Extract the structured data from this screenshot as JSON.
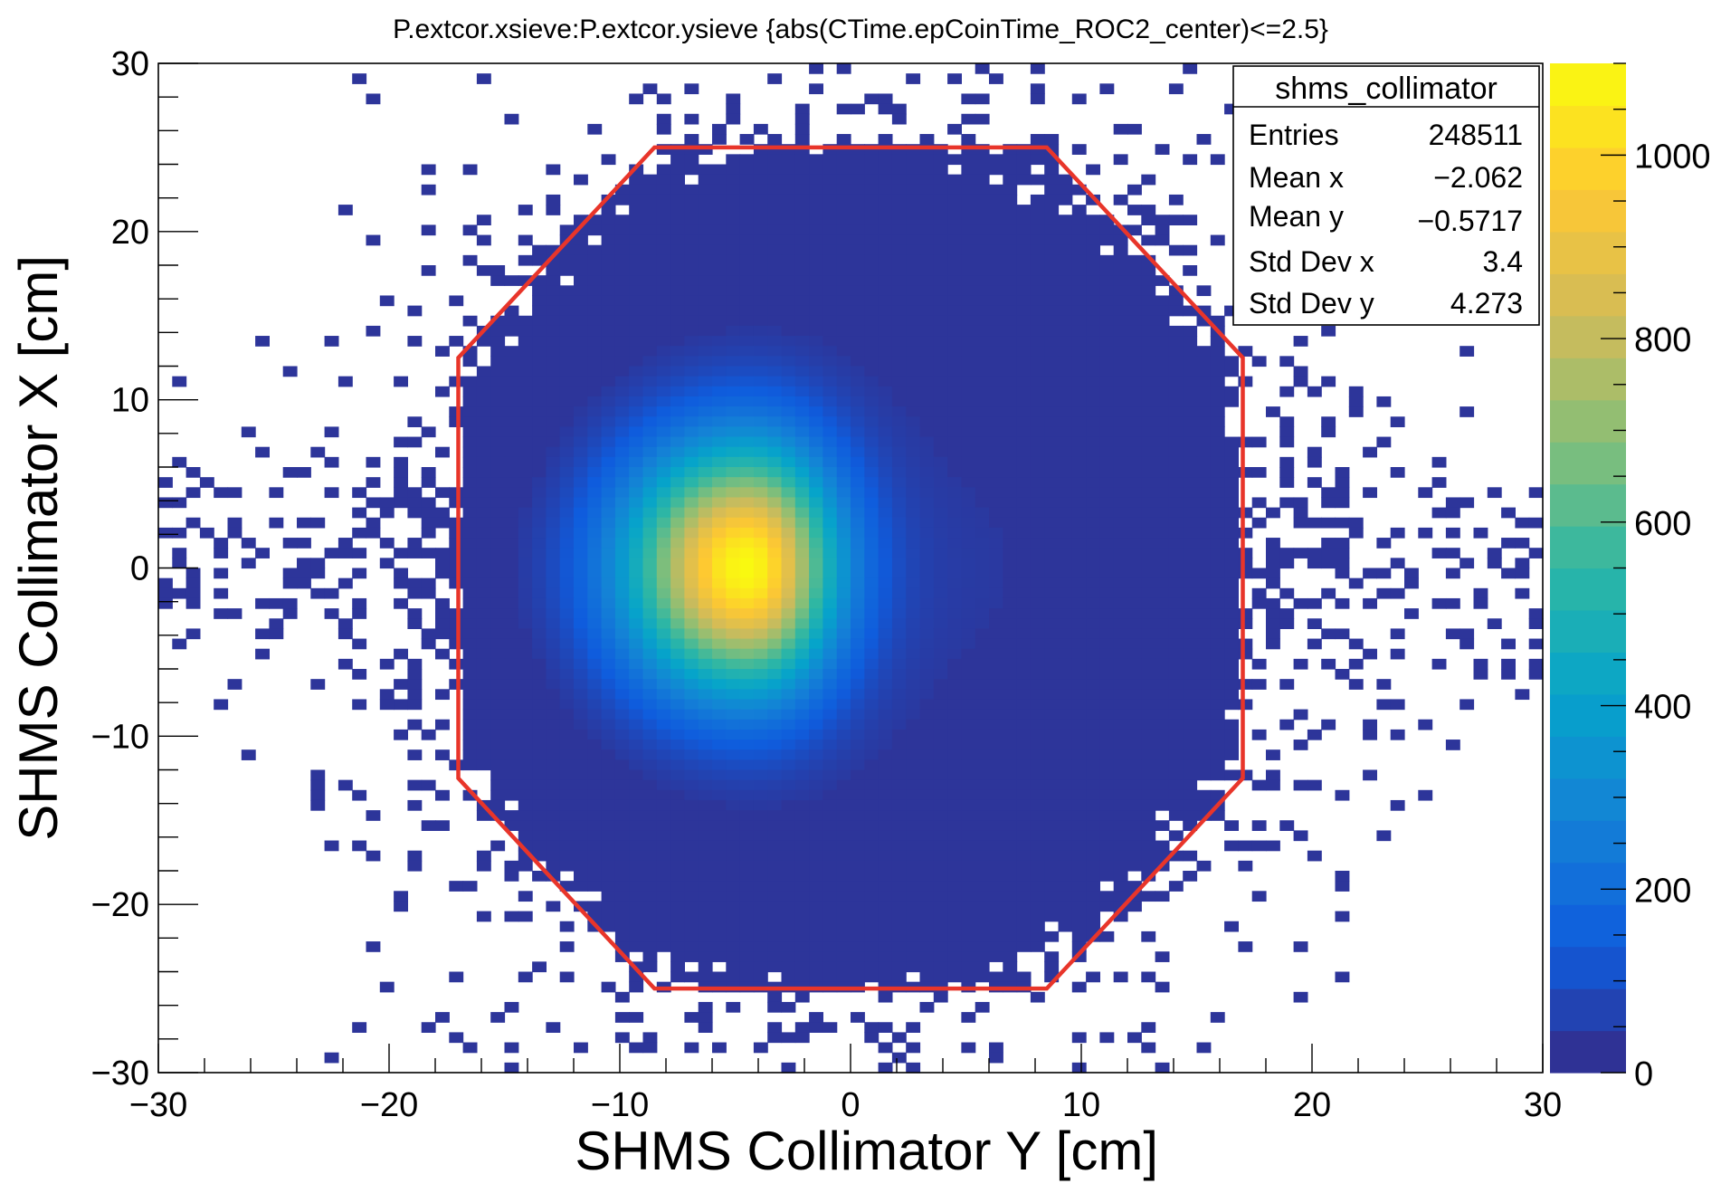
{
  "chart_data": {
    "type": "heatmap",
    "title": "P.extcor.xsieve:P.extcor.ysieve {abs(CTime.epCoinTime_ROC2_center)<=2.5}",
    "xlabel": "SHMS Collimator Y [cm]",
    "ylabel": "SHMS Collimator X [cm]",
    "xlim": [
      -30,
      30
    ],
    "ylim": [
      -30,
      30
    ],
    "x_ticks": [
      "−30",
      "−20",
      "−10",
      "0",
      "10",
      "20",
      "30"
    ],
    "y_ticks": [
      "30",
      "20",
      "10",
      "0",
      "−10",
      "−20",
      "−30"
    ],
    "x_tick_values": [
      -30,
      -20,
      -10,
      0,
      10,
      20,
      30
    ],
    "y_tick_values": [
      30,
      20,
      10,
      0,
      -10,
      -20,
      -30
    ],
    "colorbar": {
      "range": [
        0,
        1100
      ],
      "tick_labels": [
        "1000",
        "800",
        "600",
        "400",
        "200",
        "0"
      ],
      "tick_values": [
        1000,
        800,
        600,
        400,
        200,
        0
      ],
      "palette": [
        "#352a87",
        "#0f5cdd",
        "#1481d6",
        "#06a4ca",
        "#2eb7a4",
        "#87bf77",
        "#d1bb59",
        "#fec832",
        "#f9fb0e"
      ]
    },
    "hot_spot": {
      "center_y_cm": -4.5,
      "center_x_cm": 0.0,
      "peak": 1050
    },
    "collimator_outline": {
      "color": "#e8352a",
      "vertices": [
        [
          -8.5,
          25
        ],
        [
          8.5,
          25
        ],
        [
          17,
          12.5
        ],
        [
          17,
          -12.5
        ],
        [
          8.5,
          -25
        ],
        [
          -8.5,
          -25
        ],
        [
          -17,
          -12.5
        ],
        [
          -17,
          12.5
        ]
      ]
    },
    "stats_box": {
      "name": "shms_collimator",
      "rows": [
        {
          "label": "Entries",
          "value": "248511"
        },
        {
          "label": "Mean x",
          "value": "−2.062"
        },
        {
          "label": "Mean y",
          "value": "−0.5717"
        },
        {
          "label": "Std Dev x",
          "value": "3.4"
        },
        {
          "label": "Std Dev y",
          "value": "4.273"
        }
      ]
    }
  }
}
